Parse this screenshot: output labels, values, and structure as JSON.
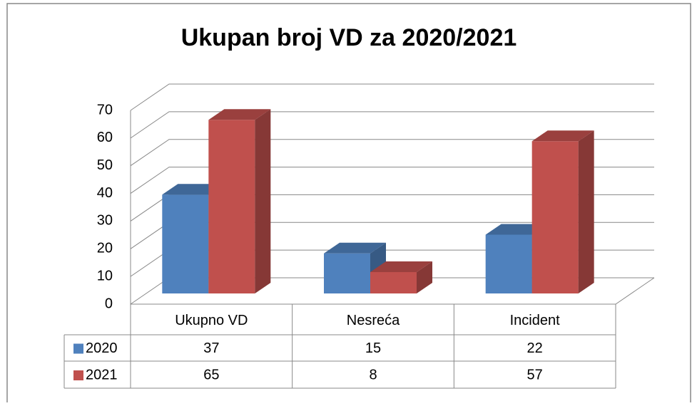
{
  "chart_data": {
    "type": "bar",
    "title": "Ukupan broj VD  za 2020/2021",
    "categories": [
      "Ukupno VD",
      "Nesreća",
      "Incident"
    ],
    "series": [
      {
        "name": "2020",
        "color": "#4f81bd",
        "values": [
          37,
          15,
          22
        ]
      },
      {
        "name": "2021",
        "color": "#c0504d",
        "values": [
          65,
          8,
          57
        ]
      }
    ],
    "ylim": [
      0,
      70
    ],
    "yticks": [
      0,
      10,
      20,
      30,
      40,
      50,
      60,
      70
    ],
    "grid": true,
    "legend": "table"
  }
}
